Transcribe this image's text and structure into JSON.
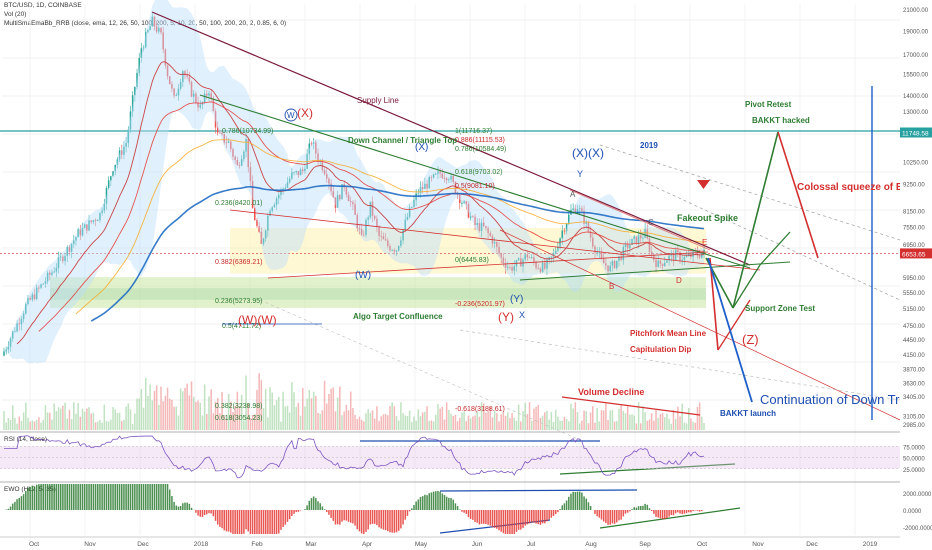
{
  "header": {
    "symbol": "BTC/USD, 1D, COINBASE",
    "vol": "Vol (20)",
    "study": "MultiSmaEmaBb_RRB (close, ema, 12, 26, 50, 100, 200, 5, 10, 20, 50, 100, 200, 20, 2, 0.85, 6, 0)"
  },
  "colors": {
    "up": "#26a69a",
    "down": "#ef5350",
    "supply": "#7b1a3a",
    "green": "#2e7d32",
    "red": "#d32f2f",
    "blue": "#1e4fb0",
    "teal": "#26a0a0",
    "rsi_band": "#e1bee7",
    "zone": "#fff3b0",
    "gray": "#9e9e9e"
  },
  "chart_data": [
    {
      "type": "candlestick",
      "title": "BTC/USD, 1D, COINBASE",
      "log_scale": true,
      "y_ticks": [
        "21000.00",
        "19000.00",
        "17000.00",
        "15500.00",
        "14000.00",
        "13000.00",
        "11748.58",
        "10250.00",
        "9250.00",
        "8150.00",
        "7550.00",
        "6950.00",
        "6653.65",
        "5950.00",
        "5550.00",
        "5150.00",
        "4750.00",
        "4450.00",
        "4150.00",
        "3870.00",
        "3630.00",
        "3405.00",
        "3105.00",
        "2985.00"
      ],
      "price_tag": "6653.65",
      "resistance_tag": "11748.58",
      "x_ticks": [
        "Oct",
        "Nov",
        "Dec",
        "2018",
        "Feb",
        "Mar",
        "Apr",
        "May",
        "Jun",
        "Jul",
        "Aug",
        "Sep",
        "Oct",
        "Nov",
        "Dec",
        "2019"
      ],
      "path": [
        [
          0,
          4200
        ],
        [
          10,
          5200
        ],
        [
          22,
          6100
        ],
        [
          34,
          7300
        ],
        [
          44,
          8000
        ],
        [
          50,
          10000
        ],
        [
          56,
          11200
        ],
        [
          60,
          14600
        ],
        [
          63,
          17500
        ],
        [
          68,
          19800
        ],
        [
          72,
          18500
        ],
        [
          75,
          15500
        ],
        [
          78,
          13700
        ],
        [
          82,
          15800
        ],
        [
          86,
          14200
        ],
        [
          90,
          13200
        ],
        [
          94,
          14400
        ],
        [
          98,
          11600
        ],
        [
          103,
          11200
        ],
        [
          107,
          10000
        ],
        [
          111,
          11300
        ],
        [
          114,
          8200
        ],
        [
          118,
          6900
        ],
        [
          122,
          8300
        ],
        [
          127,
          8900
        ],
        [
          132,
          9600
        ],
        [
          137,
          9800
        ],
        [
          141,
          11300
        ],
        [
          144,
          10400
        ],
        [
          148,
          9700
        ],
        [
          152,
          8400
        ],
        [
          156,
          9200
        ],
        [
          160,
          8200
        ],
        [
          164,
          7100
        ],
        [
          168,
          8300
        ],
        [
          172,
          7200
        ],
        [
          176,
          6900
        ],
        [
          180,
          6800
        ],
        [
          185,
          7900
        ],
        [
          190,
          8900
        ],
        [
          195,
          9300
        ],
        [
          200,
          9700
        ],
        [
          204,
          9600
        ],
        [
          208,
          8800
        ],
        [
          212,
          8200
        ],
        [
          216,
          7600
        ],
        [
          220,
          7500
        ],
        [
          224,
          7100
        ],
        [
          228,
          6500
        ],
        [
          232,
          6200
        ],
        [
          236,
          6350
        ],
        [
          240,
          6600
        ],
        [
          244,
          6300
        ],
        [
          248,
          6200
        ],
        [
          252,
          6600
        ],
        [
          256,
          7400
        ],
        [
          260,
          8100
        ],
        [
          263,
          8300
        ],
        [
          266,
          7800
        ],
        [
          270,
          7000
        ],
        [
          274,
          6400
        ],
        [
          278,
          6200
        ],
        [
          282,
          6500
        ],
        [
          286,
          6900
        ],
        [
          290,
          7100
        ],
        [
          294,
          7300
        ],
        [
          297,
          6600
        ],
        [
          300,
          6300
        ],
        [
          304,
          6500
        ],
        [
          308,
          6600
        ],
        [
          312,
          6500
        ],
        [
          316,
          6610
        ],
        [
          320,
          6653.65
        ]
      ],
      "annotations": [
        "Supply Line",
        "Down Channel / Triangle Top",
        "(X)",
        "(X)(X)",
        "Y",
        "A",
        "C",
        "E",
        "B",
        "D",
        "(W)",
        "(Y)",
        "X",
        "(W)(W)",
        "(Y)",
        "Algo Target Confluence",
        "Fakeout Spike",
        "Support Zone Test",
        "Pitchfork Mean Line",
        "Capitulation Dip",
        "(Z)",
        "Volume Decline",
        "Continuation of Down Trend",
        "BAKKT launch",
        "Pivot Retest",
        "BAKKT hacked",
        "Colossal squeeze of BB = violent move up/down soon",
        "2019"
      ],
      "fib_labels": [
        "1(11716.37)",
        "0.886(11115.53)",
        "0.786(10584.49)",
        "0.618(9703.02)",
        "0.5(9081.10)",
        "0.786(10734.99)",
        "0.236(8420.01)",
        "0.382(6369.21)",
        "0(6445.83)",
        "0.236(5273.95)",
        "-0.236(5201.97)",
        "0.5(4711.72)",
        "0.382(3238.98)",
        "-0.618(3188.61)",
        "0.618(3054.23)"
      ]
    },
    {
      "type": "line",
      "title": "RSI (14, close)",
      "y_ticks": [
        "75.0000",
        "50.0000",
        "25.0000"
      ],
      "ylim": [
        0,
        100
      ]
    },
    {
      "type": "bar",
      "title": "EWO (HL2, 5, 35)",
      "y_ticks": [
        "2000.0000",
        "0.0000",
        "-2000.0000"
      ]
    }
  ]
}
